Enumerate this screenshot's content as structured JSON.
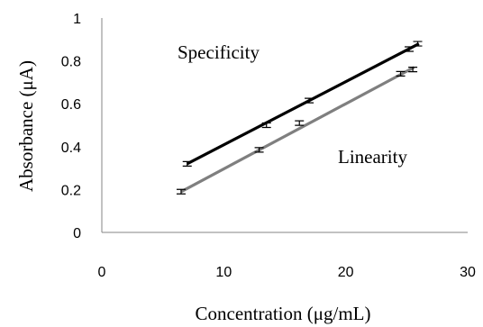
{
  "chart_data": {
    "type": "scatter",
    "title": "",
    "xlabel": "Concentration (μg/mL)",
    "ylabel": "Absorbance (μA)",
    "xlim": [
      0,
      30
    ],
    "ylim": [
      0,
      1
    ],
    "x_ticks": [
      "0",
      "10",
      "20",
      "30"
    ],
    "y_ticks": [
      "0",
      "0.2",
      "0.4",
      "0.6",
      "0.8",
      "1"
    ],
    "grid": false,
    "legend": "none",
    "annotations": [
      "Specificity",
      "Linearity"
    ],
    "series": [
      {
        "name": "Specificity",
        "color": "#000000",
        "points": [
          {
            "x": 7,
            "y": 0.32
          },
          {
            "x": 13.5,
            "y": 0.5
          },
          {
            "x": 17,
            "y": 0.615
          },
          {
            "x": 25.2,
            "y": 0.855
          },
          {
            "x": 25.9,
            "y": 0.88
          }
        ],
        "trendline": {
          "x": [
            7,
            26
          ],
          "y": [
            0.32,
            0.88
          ]
        }
      },
      {
        "name": "Linearity",
        "color": "#7f7f7f",
        "points": [
          {
            "x": 6.5,
            "y": 0.19
          },
          {
            "x": 12.9,
            "y": 0.385
          },
          {
            "x": 16.2,
            "y": 0.51
          },
          {
            "x": 24.5,
            "y": 0.74
          },
          {
            "x": 25.5,
            "y": 0.76
          }
        ],
        "trendline": {
          "x": [
            6.5,
            25.6
          ],
          "y": [
            0.19,
            0.77
          ]
        }
      }
    ]
  }
}
